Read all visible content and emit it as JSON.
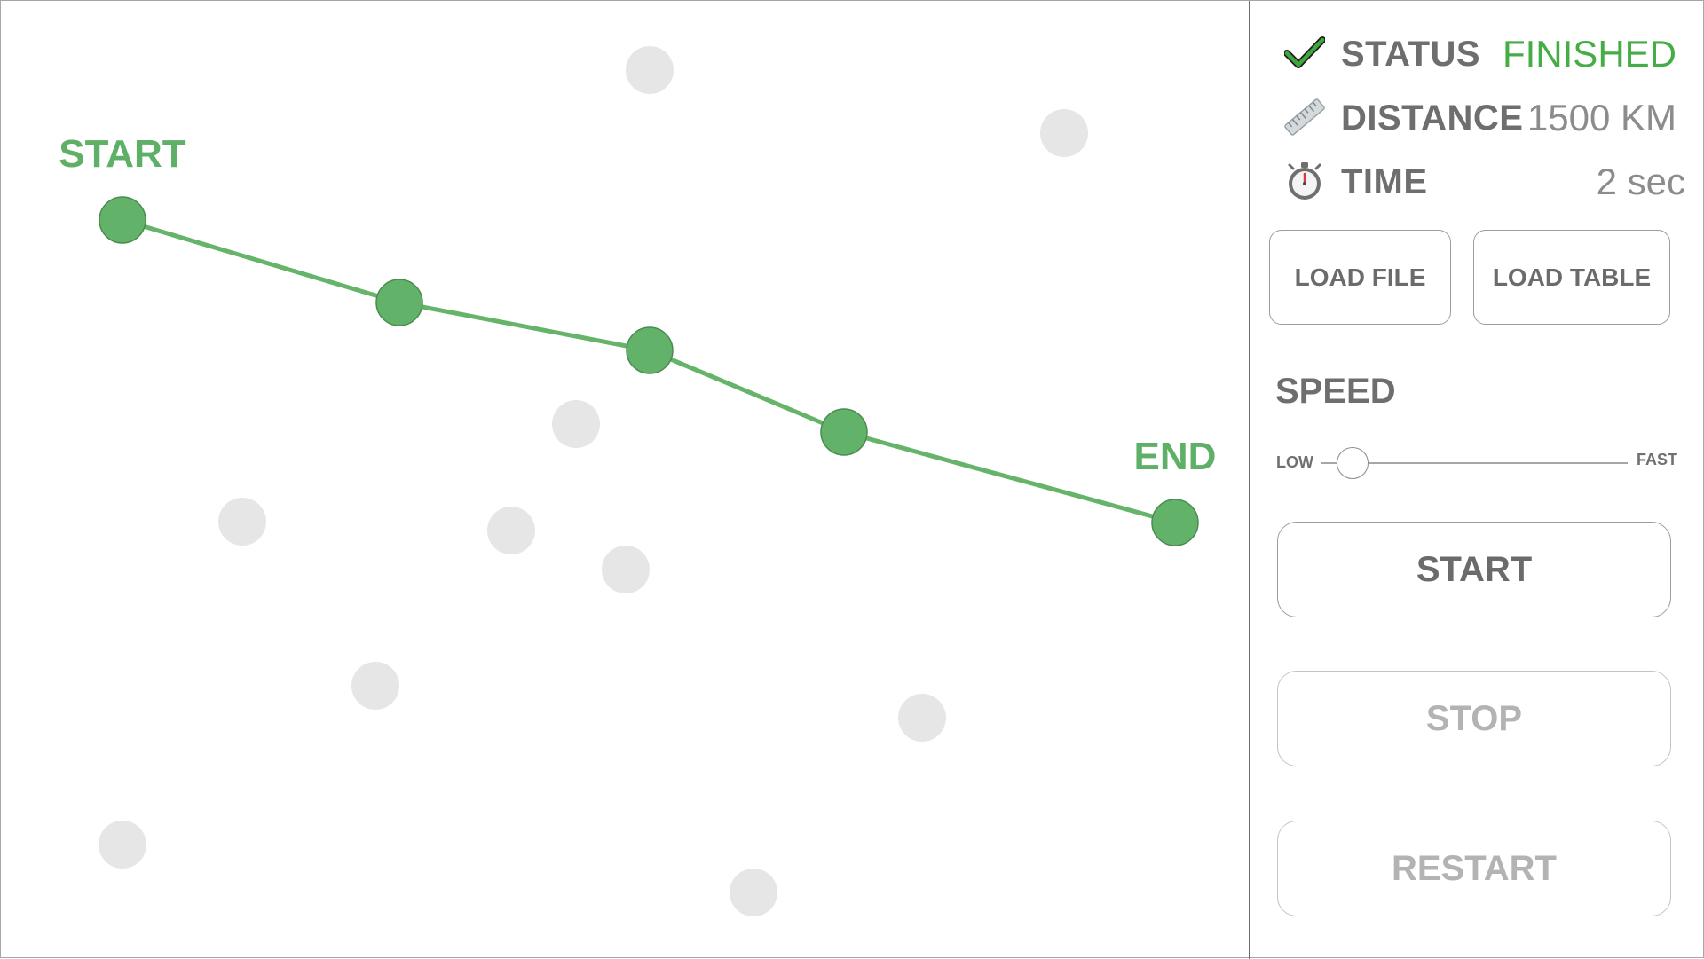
{
  "map": {
    "start_label": "START",
    "end_label": "END",
    "route_color": "#65b46a",
    "inactive_node_color": "#e6e6e6"
  },
  "status": {
    "icon": "checkmark-icon",
    "label": "STATUS",
    "value": "FINISHED",
    "value_color": "#45ad45"
  },
  "distance": {
    "icon": "ruler-icon",
    "label": "DISTANCE",
    "value": "1500 KM"
  },
  "time": {
    "icon": "stopwatch-icon",
    "label": "TIME",
    "value": "2 sec"
  },
  "buttons": {
    "load_file": "LOAD FILE",
    "load_table": "LOAD TABLE",
    "start": "START",
    "stop": "STOP",
    "restart": "RESTART"
  },
  "speed": {
    "title": "SPEED",
    "low_label": "LOW",
    "high_label": "FAST",
    "level": 0.1
  }
}
